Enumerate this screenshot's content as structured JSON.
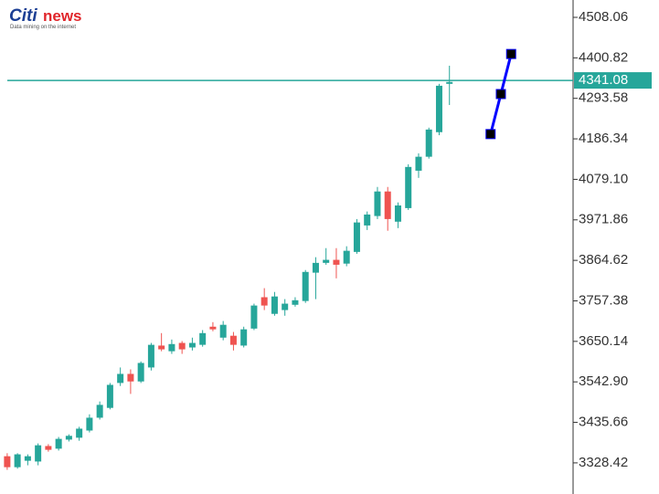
{
  "logo": {
    "brand": "Citi",
    "brand_accent": "news",
    "tagline": "Data mining on the internet"
  },
  "chart_data": {
    "type": "candlestick",
    "open": [
      3346,
      3317,
      3334,
      3332,
      3373,
      3366,
      3390,
      3395,
      3414,
      3448,
      3474,
      3540,
      3564,
      3544,
      3581,
      3639,
      3624,
      3646,
      3634,
      3641,
      3689,
      3660,
      3665,
      3639,
      3684,
      3767,
      3723,
      3733,
      3747,
      3757,
      3832,
      3858,
      3866,
      3856,
      3887,
      3957,
      3982,
      4047,
      3967,
      4003,
      4102,
      4139,
      4204,
      4332
    ],
    "high": [
      3354,
      3354,
      3351,
      3380,
      3378,
      3397,
      3404,
      3424,
      3457,
      3491,
      3540,
      3581,
      3576,
      3597,
      3646,
      3672,
      3655,
      3651,
      3660,
      3680,
      3701,
      3704,
      3675,
      3689,
      3750,
      3791,
      3781,
      3762,
      3767,
      3839,
      3873,
      3897,
      3897,
      3902,
      3974,
      3994,
      4059,
      4059,
      4018,
      4119,
      4148,
      4216,
      4332,
      4380
    ],
    "low": [
      3310,
      3313,
      3322,
      3322,
      3358,
      3361,
      3385,
      3387,
      3409,
      3443,
      3470,
      3532,
      3511,
      3540,
      3573,
      3624,
      3617,
      3617,
      3626,
      3636,
      3677,
      3653,
      3626,
      3634,
      3680,
      3733,
      3718,
      3718,
      3742,
      3752,
      3762,
      3853,
      3817,
      3849,
      3882,
      3945,
      3974,
      3943,
      3950,
      3998,
      4083,
      4134,
      4196,
      4276
    ],
    "close": [
      3317,
      3351,
      3346,
      3375,
      3363,
      3392,
      3400,
      3419,
      3448,
      3482,
      3535,
      3564,
      3544,
      3593,
      3641,
      3629,
      3643,
      3629,
      3646,
      3672,
      3682,
      3694,
      3641,
      3682,
      3745,
      3745,
      3769,
      3750,
      3759,
      3834,
      3858,
      3866,
      3853,
      3890,
      3965,
      3986,
      4047,
      3974,
      4010,
      4112,
      4139,
      4211,
      4327,
      4337
    ],
    "up_color": "#26a69a",
    "down_color": "#ef5350",
    "xlim": [
      -0.7,
      54.4
    ],
    "ylim": [
      3246,
      4554
    ],
    "yticks": [
      3328.42,
      3435.66,
      {
        "value": 3542.9,
        "label": "3542.90"
      },
      3650.14,
      3757.38,
      3864.62,
      3971.86,
      {
        "value": 4079.1,
        "label": "4079.10"
      },
      4186.34,
      4293.58,
      4400.82,
      4508.06
    ],
    "price_line": {
      "value": 4341.08,
      "color": "#26a69a"
    },
    "forecast": {
      "x": [
        47,
        48,
        49
      ],
      "values": [
        4199,
        4305,
        4411
      ],
      "color": "#0000ff"
    }
  }
}
